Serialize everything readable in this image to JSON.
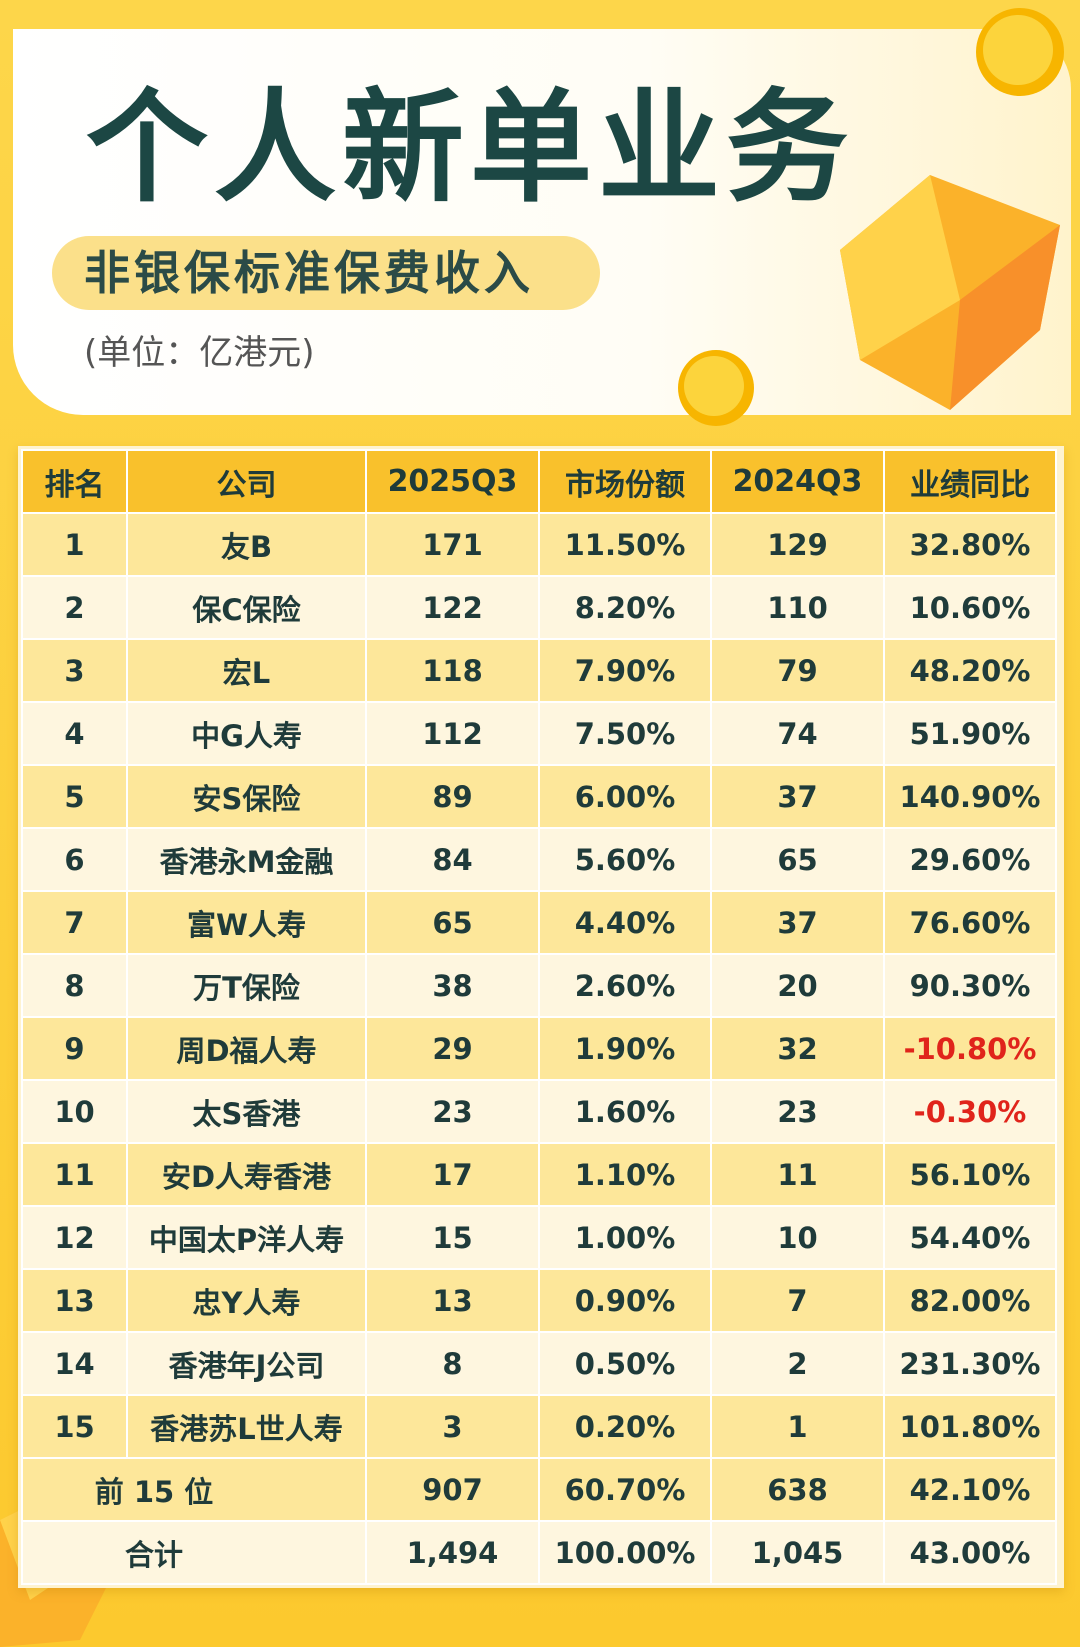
{
  "header": {
    "title": "个人新单业务",
    "subtitle": "非银保标准保费收入",
    "unit": "(单位：亿港元)"
  },
  "table": {
    "columns": [
      "排名",
      "公司",
      "2025Q3",
      "市场份额",
      "2024Q3",
      "业绩同比"
    ],
    "rows": [
      [
        "1",
        "友B",
        "171",
        "11.50%",
        "129",
        "32.80%"
      ],
      [
        "2",
        "保C保险",
        "122",
        "8.20%",
        "110",
        "10.60%"
      ],
      [
        "3",
        "宏L",
        "118",
        "7.90%",
        "79",
        "48.20%"
      ],
      [
        "4",
        "中G人寿",
        "112",
        "7.50%",
        "74",
        "51.90%"
      ],
      [
        "5",
        "安S保险",
        "89",
        "6.00%",
        "37",
        "140.90%"
      ],
      [
        "6",
        "香港永M金融",
        "84",
        "5.60%",
        "65",
        "29.60%"
      ],
      [
        "7",
        "富W人寿",
        "65",
        "4.40%",
        "37",
        "76.60%"
      ],
      [
        "8",
        "万T保险",
        "38",
        "2.60%",
        "20",
        "90.30%"
      ],
      [
        "9",
        "周D福人寿",
        "29",
        "1.90%",
        "32",
        "-10.80%"
      ],
      [
        "10",
        "太S香港",
        "23",
        "1.60%",
        "23",
        "-0.30%"
      ],
      [
        "11",
        "安D人寿香港",
        "17",
        "1.10%",
        "11",
        "56.10%"
      ],
      [
        "12",
        "中国太P洋人寿",
        "15",
        "1.00%",
        "10",
        "54.40%"
      ],
      [
        "13",
        "忠Y人寿",
        "13",
        "0.90%",
        "7",
        "82.00%"
      ],
      [
        "14",
        "香港年J公司",
        "8",
        "0.50%",
        "2",
        "231.30%"
      ],
      [
        "15",
        "香港苏L世人寿",
        "3",
        "0.20%",
        "1",
        "101.80%"
      ]
    ],
    "summary": [
      [
        "前 15 位",
        "907",
        "60.70%",
        "638",
        "42.10%"
      ],
      [
        "合计",
        "1,494",
        "100.00%",
        "1,045",
        "43.00%"
      ]
    ]
  }
}
